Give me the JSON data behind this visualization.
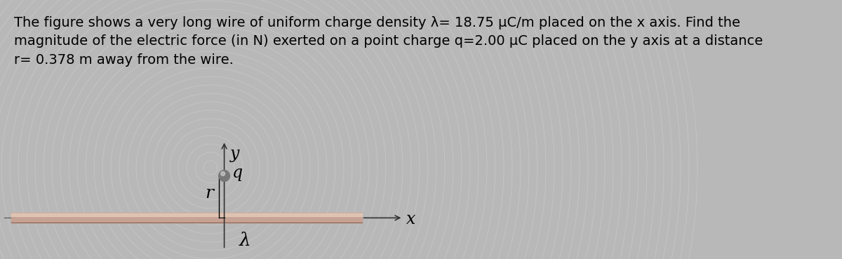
{
  "background_color": "#b8b8b8",
  "text_bg_color": "#e8e8e8",
  "text_content": "The figure shows a very long wire of uniform charge density λ= 18.75 µC/m placed on the x axis. Find the\nmagnitude of the electric force (in N) exerted on a point charge q=2.00 µC placed on the y axis at a distance\nr= 0.378 m away from the wire.",
  "text_fontsize": 14,
  "diagram_bg": "#c8c8c8",
  "wire_core_color": "#c8a090",
  "wire_highlight_color": "#e8d0c0",
  "wire_shadow_color": "#906050",
  "axis_color": "#333333",
  "charge_color": "#888888",
  "charge_highlight": "#cccccc",
  "label_fontsize": 15,
  "ripple_color": "#b0b0b0",
  "label_q": "q",
  "label_r": "r",
  "label_lambda": "λ",
  "label_x": "x",
  "label_y": "y"
}
